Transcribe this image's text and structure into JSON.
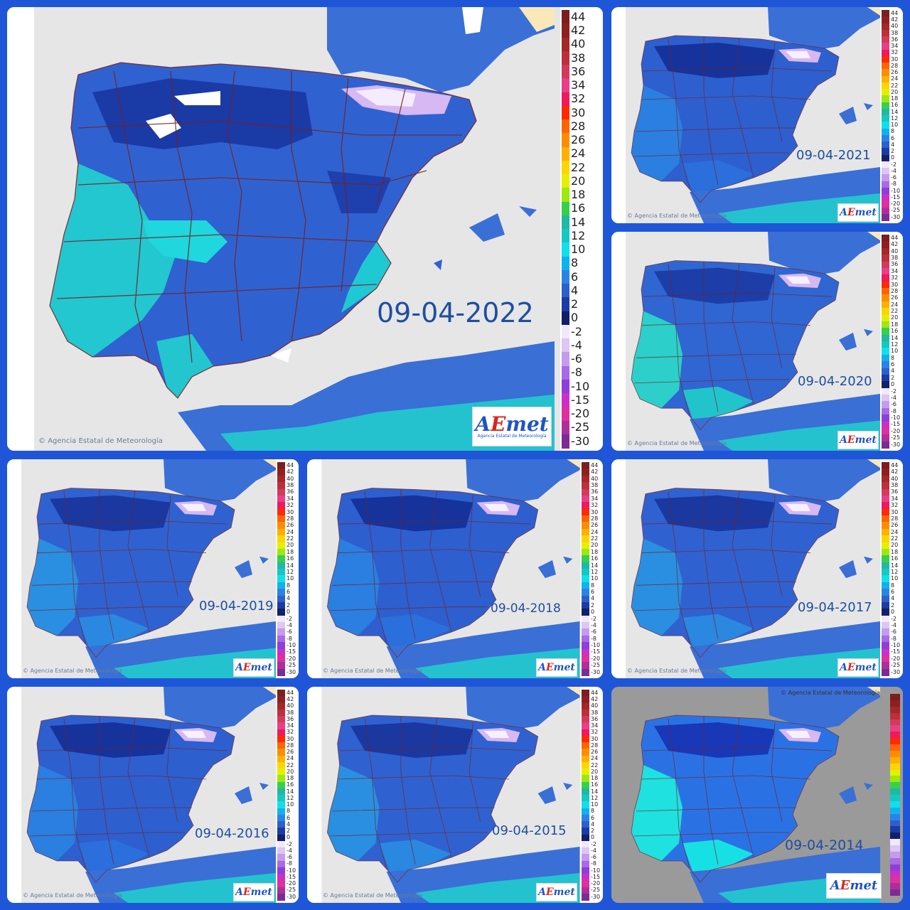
{
  "copyright": "Agencia Estatal de Meteorología",
  "logo": {
    "text_a": "A",
    "text_e": "E",
    "text_rest": "met",
    "subtitle": "Agencia Estatal de Meteorología"
  },
  "scale_labels": [
    "44",
    "42",
    "40",
    "38",
    "36",
    "34",
    "32",
    "30",
    "28",
    "26",
    "24",
    "22",
    "20",
    "18",
    "16",
    "14",
    "12",
    "10",
    "8",
    "6",
    "4",
    "2",
    "0",
    "-2",
    "-4",
    "-6",
    "-8",
    "-10",
    "-15",
    "-20",
    "-25",
    "-30"
  ],
  "scale_colors": [
    "#7d1d1d",
    "#8e2020",
    "#a52727",
    "#bd2f3a",
    "#d33a5a",
    "#ea3e86",
    "#f0195a",
    "#ff2a00",
    "#ff6400",
    "#ff8c00",
    "#ffb000",
    "#ffd500",
    "#e5f000",
    "#9de80f",
    "#35d14a",
    "#20b9a3",
    "#14c8c4",
    "#12e0e8",
    "#0fb2ee",
    "#2a84e8",
    "#2d60cf",
    "#1b3ba6",
    "#121f6b",
    "#f1e8fb",
    "#dcc6f4",
    "#c49bee",
    "#a96ae5",
    "#8e3ed9",
    "#cc2fc8",
    "#e02f9f",
    "#b02e9a",
    "#7d2a96"
  ],
  "panels": [
    {
      "date": "09-04-2022",
      "variant": "main"
    },
    {
      "date": "09-04-2021",
      "variant": "dark"
    },
    {
      "date": "09-04-2020",
      "variant": "light"
    },
    {
      "date": "09-04-2019",
      "variant": "mid"
    },
    {
      "date": "09-04-2018",
      "variant": "dark"
    },
    {
      "date": "09-04-2017",
      "variant": "mid"
    },
    {
      "date": "09-04-2016",
      "variant": "dark"
    },
    {
      "date": "09-04-2015",
      "variant": "mid"
    },
    {
      "date": "09-04-2014",
      "variant": "bright"
    }
  ]
}
